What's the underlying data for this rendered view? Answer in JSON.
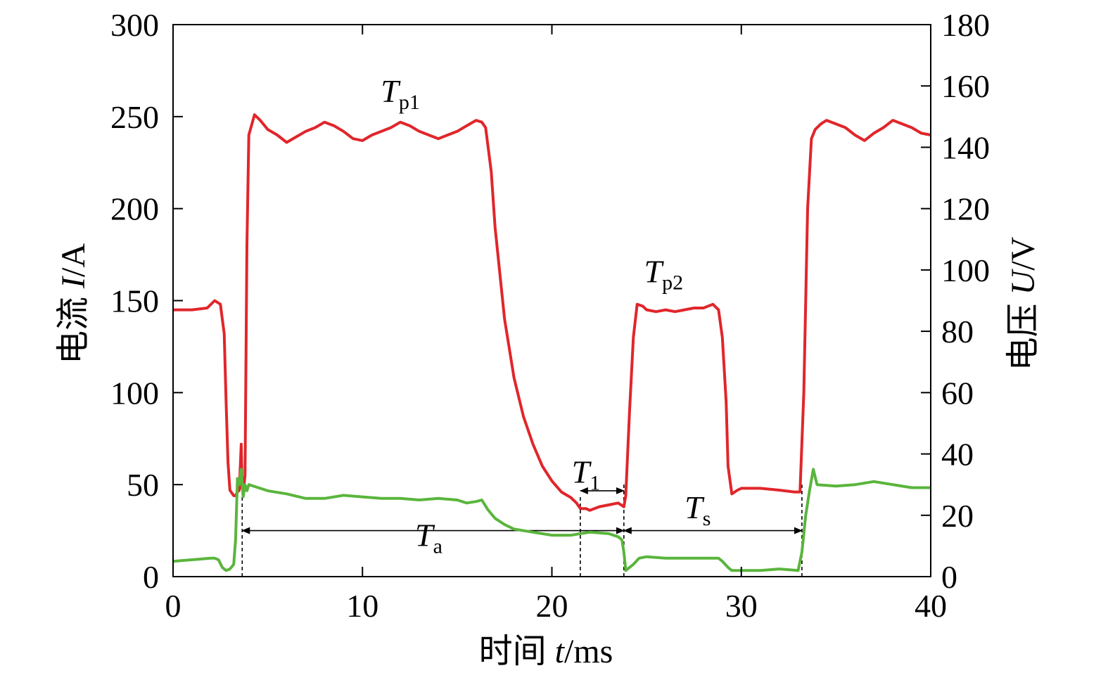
{
  "chart_data": {
    "type": "line",
    "title": "",
    "x_axis": {
      "label_main": "时间 ",
      "label_var": "t",
      "label_unit": "/ms",
      "range": [
        0,
        40
      ],
      "ticks": [
        "0",
        "10",
        "20",
        "30",
        "40"
      ]
    },
    "y_axis_left": {
      "label_main": "电流 ",
      "label_var": "I",
      "label_unit": "/A",
      "range": [
        0,
        300
      ],
      "ticks": [
        "0",
        "50",
        "100",
        "150",
        "200",
        "250",
        "300"
      ]
    },
    "y_axis_right": {
      "label_main": "电压 ",
      "label_var": "U",
      "label_unit": "/V",
      "range": [
        0,
        180
      ],
      "ticks": [
        "0",
        "20",
        "40",
        "60",
        "80",
        "100",
        "120",
        "140",
        "160",
        "180"
      ]
    },
    "grid": false,
    "series": [
      {
        "axis": "left",
        "color": "#e0262b",
        "x": [
          0,
          1,
          1.8,
          2.2,
          2.5,
          2.7,
          2.8,
          2.9,
          3.0,
          3.2,
          3.3,
          3.4,
          3.5,
          3.6,
          3.65,
          3.7,
          3.75,
          3.8,
          3.9,
          4.0,
          4.3,
          4.6,
          5.0,
          5.5,
          6.0,
          6.5,
          7.0,
          7.5,
          8.0,
          8.5,
          9.0,
          9.5,
          10.0,
          10.5,
          11.0,
          11.5,
          12.0,
          12.5,
          13.0,
          13.5,
          14.0,
          14.5,
          15.0,
          15.5,
          16.0,
          16.3,
          16.5,
          16.8,
          17.0,
          17.5,
          18.0,
          18.5,
          19.0,
          19.5,
          20.0,
          20.5,
          21.0,
          21.3,
          21.5,
          21.8,
          22.0,
          22.5,
          23.0,
          23.5,
          23.8,
          23.9,
          24.1,
          24.3,
          24.5,
          24.8,
          25.0,
          25.5,
          26.0,
          26.5,
          27.0,
          27.5,
          28.0,
          28.5,
          28.8,
          29.0,
          29.2,
          29.3,
          29.5,
          29.8,
          30.0,
          31.0,
          32.0,
          32.8,
          33.1,
          33.3,
          33.5,
          33.7,
          33.9,
          34.2,
          34.5,
          35.0,
          35.5,
          36.0,
          36.5,
          37.0,
          37.5,
          38.0,
          38.5,
          39.0,
          39.5,
          40.0
        ],
        "values": [
          145,
          145,
          146,
          150,
          148,
          132,
          95,
          62,
          47,
          44,
          44,
          46,
          47,
          72,
          48,
          49,
          50,
          55,
          180,
          240,
          251,
          248,
          243,
          240,
          236,
          239,
          242,
          244,
          247,
          245,
          242,
          238,
          237,
          240,
          242,
          244,
          247,
          245,
          242,
          240,
          238,
          240,
          242,
          245,
          248,
          247,
          244,
          220,
          190,
          140,
          108,
          87,
          72,
          60,
          52,
          46,
          43,
          40,
          37,
          37,
          36,
          38,
          39,
          40,
          38,
          44,
          90,
          130,
          148,
          147,
          145,
          144,
          145,
          144,
          145,
          146,
          146,
          148,
          145,
          130,
          95,
          60,
          45,
          47,
          48,
          48,
          47,
          46,
          46,
          100,
          200,
          238,
          243,
          246,
          248,
          246,
          244,
          240,
          237,
          241,
          244,
          248,
          246,
          244,
          241,
          240
        ],
        "name": ""
      },
      {
        "axis": "right",
        "color": "#5ab53c",
        "x": [
          0,
          1,
          2.0,
          2.2,
          2.4,
          2.6,
          2.8,
          3.0,
          3.2,
          3.3,
          3.4,
          3.5,
          3.6,
          3.7,
          3.8,
          3.9,
          4.0,
          4.5,
          5.0,
          6.0,
          7.0,
          8.0,
          9.0,
          10.0,
          11.0,
          12.0,
          13.0,
          14.0,
          15.0,
          15.5,
          16.0,
          16.3,
          16.6,
          17.0,
          17.5,
          18.0,
          19.0,
          20.0,
          21.0,
          21.5,
          22.0,
          23.0,
          23.5,
          23.7,
          23.8,
          23.9,
          24.0,
          24.3,
          24.6,
          25.0,
          26.0,
          27.0,
          28.0,
          28.8,
          29.0,
          29.3,
          29.5,
          30.0,
          31.0,
          32.0,
          33.0,
          33.2,
          33.4,
          33.6,
          33.8,
          34.0,
          35.0,
          36.0,
          37.0,
          38.0,
          39.0,
          40.0
        ],
        "values": [
          5,
          5.5,
          6,
          6,
          5.5,
          3,
          2,
          2.5,
          4,
          12,
          32,
          30,
          35,
          26,
          30,
          28,
          30,
          29,
          28,
          27,
          25.5,
          25.5,
          26.5,
          26,
          25.5,
          25.5,
          25,
          25.5,
          25,
          24,
          24.5,
          25,
          22,
          19,
          17,
          15.5,
          14.5,
          13.5,
          13.5,
          14,
          14.5,
          14,
          13,
          12,
          8,
          2,
          2.5,
          4,
          6,
          6.5,
          6,
          6,
          6,
          6,
          5,
          3,
          2,
          2,
          2,
          2.5,
          2,
          8,
          20,
          28,
          35,
          30,
          29.5,
          30,
          31,
          30,
          29,
          29
        ],
        "name": ""
      }
    ],
    "annotations": {
      "tp1": {
        "main": "T",
        "sub": "p1",
        "x": 12.0,
        "y": 258
      },
      "tp2": {
        "main": "T",
        "sub": "p2",
        "x": 25.9,
        "y": 160
      },
      "t1": {
        "main": "T",
        "sub": "1",
        "x": 21.8,
        "y": 51
      },
      "ta": {
        "main": "T",
        "sub": "a",
        "x": 13.5,
        "y": 10
      },
      "ts": {
        "main": "T",
        "sub": "s",
        "x": 27.7,
        "y": 19
      }
    },
    "intervals": [
      {
        "name": "Ta",
        "from": 3.65,
        "to": 23.8,
        "y": 15
      },
      {
        "name": "T1",
        "from": 21.5,
        "to": 23.8,
        "y": 28
      },
      {
        "name": "Ts",
        "from": 23.8,
        "to": 33.2,
        "y": 15
      }
    ],
    "markers_x": [
      3.65,
      21.5,
      23.8,
      33.2
    ]
  }
}
